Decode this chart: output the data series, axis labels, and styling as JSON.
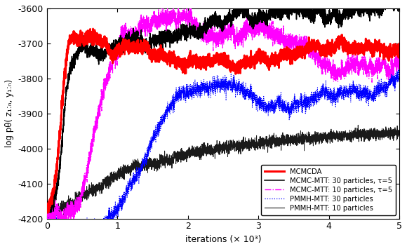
{
  "title": "",
  "xlabel": "iterations (× 10³)",
  "ylabel": "log p_θ( z_{1:n}, y_{1:n})",
  "xlim": [
    0,
    5000
  ],
  "ylim": [
    -4200,
    -3600
  ],
  "yticks": [
    -4200,
    -4100,
    -4000,
    -3900,
    -3800,
    -3700,
    -3600
  ],
  "xticks": [
    0,
    1000,
    2000,
    3000,
    4000,
    5000
  ],
  "xtick_labels": [
    "0",
    "1",
    "2",
    "3",
    "4",
    "5"
  ],
  "legend_labels": [
    "MCMCDA",
    "MCMC-MTT: 30 particles, τ=5",
    "MCMC-MTT: 10 particles, τ=5",
    "PMMH-MTT: 30 particles",
    "PMMH-MTT: 10 particles"
  ],
  "colors": {
    "MCMCDA": "#ff0000",
    "MCMC30": "#000000",
    "MCMC10": "#ff00ff",
    "PMMH30": "#0000ff",
    "PMMH10": "#1a1a1a"
  },
  "background_color": "#ffffff",
  "seed": 42
}
